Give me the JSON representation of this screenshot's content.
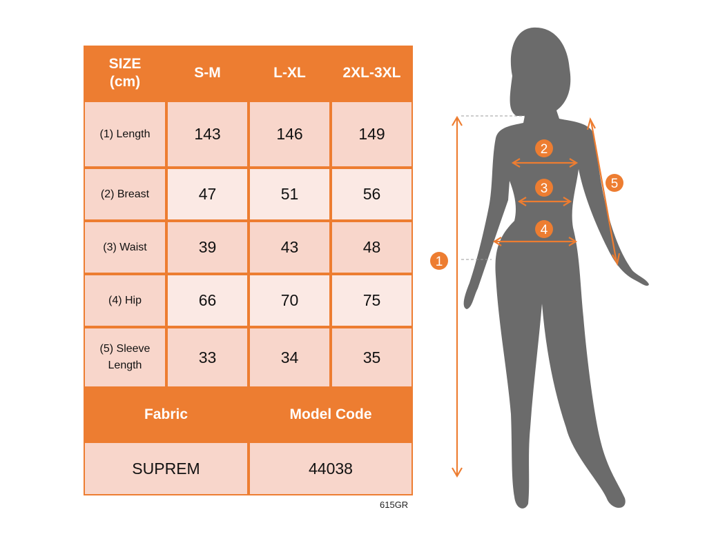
{
  "table": {
    "header": [
      "SIZE\n(cm)",
      "S-M",
      "L-XL",
      "2XL-3XL"
    ],
    "rows": [
      {
        "label": "(1) Length",
        "values": [
          "143",
          "146",
          "149"
        ]
      },
      {
        "label": "(2) Breast",
        "values": [
          "47",
          "51",
          "56"
        ]
      },
      {
        "label": "(3) Waist",
        "values": [
          "39",
          "43",
          "48"
        ]
      },
      {
        "label": "(4) Hip",
        "values": [
          "66",
          "70",
          "75"
        ]
      },
      {
        "label": "(5) Sleeve\nLength",
        "values": [
          "33",
          "34",
          "35"
        ]
      }
    ],
    "footer_headers": [
      "Fabric",
      "Model Code"
    ],
    "footer_values": [
      "SUPREM",
      "44038"
    ]
  },
  "product_code": "615GR",
  "figure": {
    "markers": [
      "1",
      "2",
      "3",
      "4",
      "5"
    ]
  },
  "colors": {
    "accent": "#ED7D31",
    "silhouette": "#6B6B6B",
    "cell_dark": "#F8D6CB",
    "cell_light": "#FBE9E4"
  }
}
